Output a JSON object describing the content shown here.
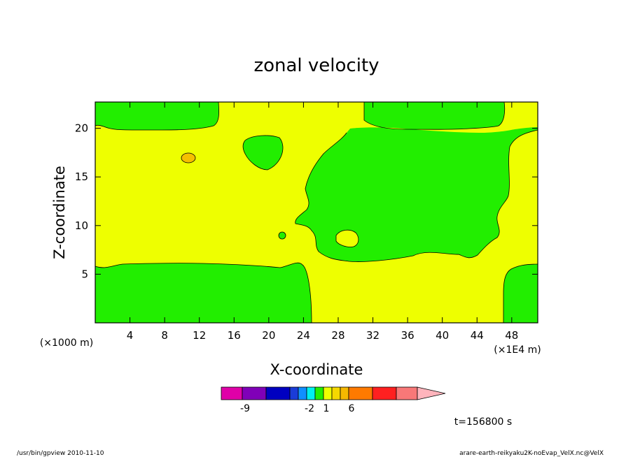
{
  "chart_data": {
    "type": "heatmap",
    "title": "zonal velocity",
    "xlabel": "X-coordinate",
    "ylabel": "Z-coordinate",
    "x_unit_left": "(×1000 m)",
    "x_unit_right": "(×1E4 m)",
    "xlim": [
      0,
      51
    ],
    "ylim": [
      0,
      22.7
    ],
    "x_ticks": [
      4,
      8,
      12,
      16,
      20,
      24,
      28,
      32,
      36,
      40,
      44,
      48
    ],
    "y_ticks": [
      5,
      10,
      15,
      20
    ],
    "colors": {
      "positive_small": "#eeff00",
      "negative_small": "#22ee00",
      "positive_mid": "#f5c000"
    },
    "regions": [
      {
        "sign": "positive",
        "description_key": "upper-left and mid band",
        "value_range": [
          0,
          1
        ]
      },
      {
        "sign": "negative",
        "description_key": "lower left, top left, right block",
        "value_range": [
          -1,
          0
        ]
      }
    ],
    "colorbar": {
      "colors": [
        "#e000a8",
        "#8000b8",
        "#0000c0",
        "#1a3cd8",
        "#1090ff",
        "#00f0f0",
        "#22ee00",
        "#eeff00",
        "#f5d800",
        "#f5b800",
        "#ff7a00",
        "#ff2020",
        "#f87878",
        "#ffb4bc"
      ],
      "labels": [
        {
          "text": "-9",
          "index": 1
        },
        {
          "text": "-2",
          "index": 5
        },
        {
          "text": "1",
          "index": 7
        },
        {
          "text": "6",
          "index": 10
        }
      ]
    },
    "time_label": "t=156800 s"
  },
  "footer": {
    "left": "/usr/bin/gpview   2010-11-10",
    "right": "arare-earth-reikyaku2K-noEvap_VelX.nc@VelX"
  }
}
